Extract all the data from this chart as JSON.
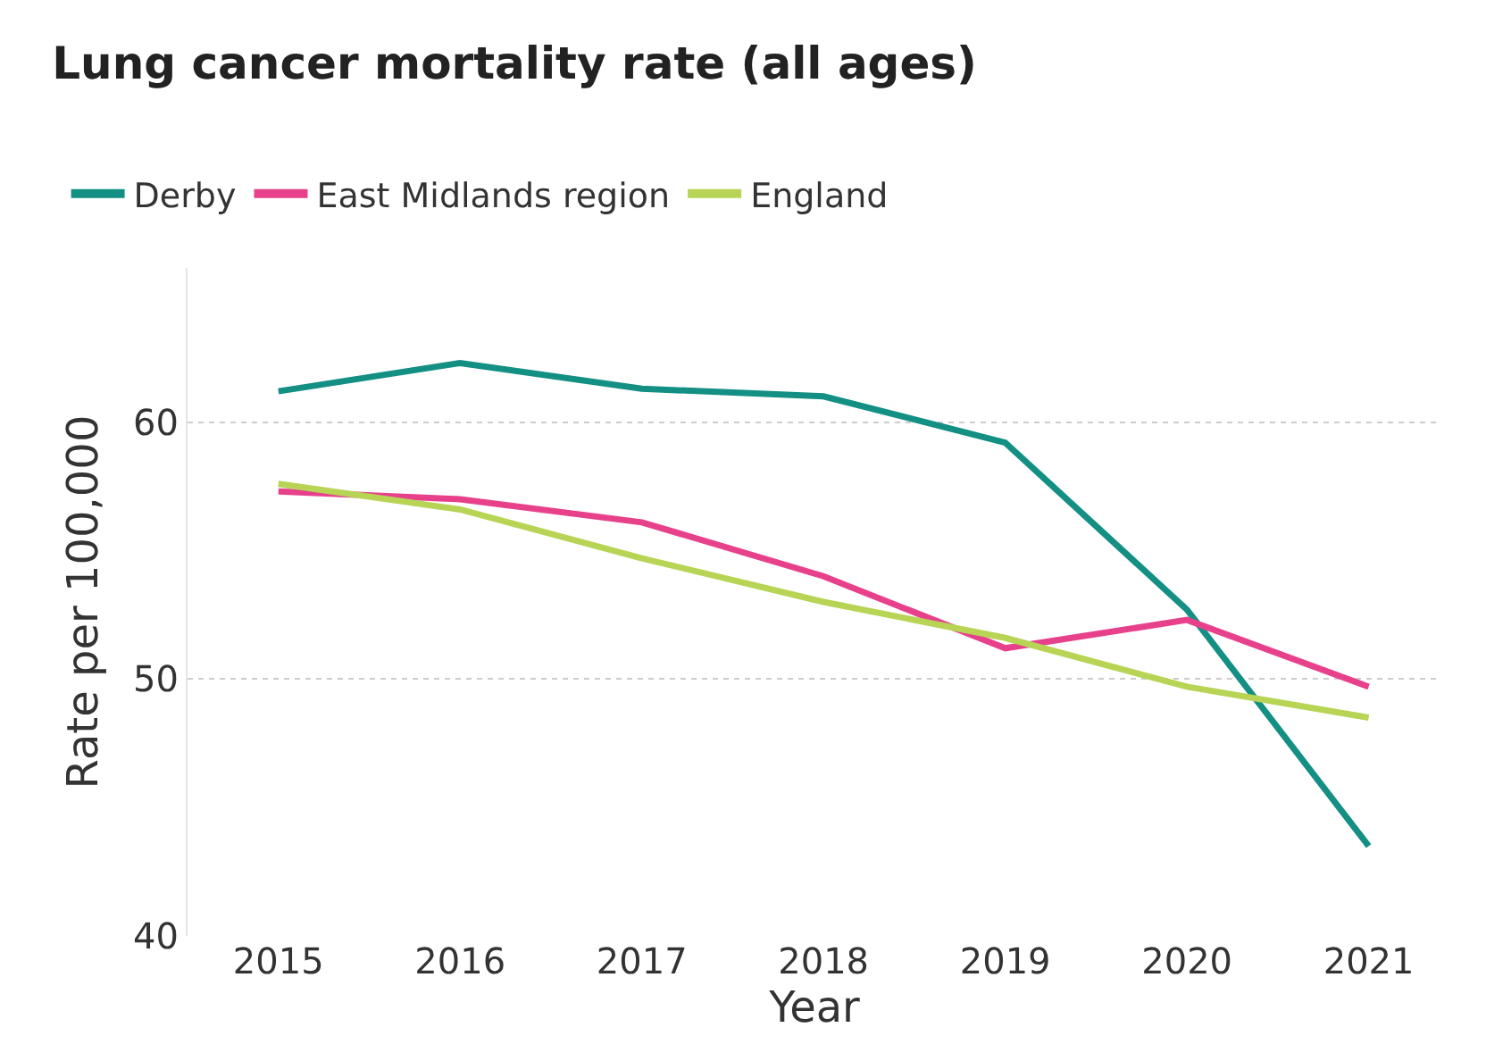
{
  "chart_data": {
    "type": "line",
    "title": "Lung cancer mortality rate (all ages)",
    "xlabel": "Year",
    "ylabel": "Rate per 100,000",
    "categories": [
      "2015",
      "2016",
      "2017",
      "2018",
      "2019",
      "2020",
      "2021"
    ],
    "series": [
      {
        "name": "Derby",
        "color": "#138f84",
        "values": [
          61.2,
          62.3,
          61.3,
          61.0,
          59.2,
          52.7,
          43.5
        ]
      },
      {
        "name": "East Midlands region",
        "color": "#e8418c",
        "values": [
          57.3,
          57.0,
          56.1,
          54.0,
          51.2,
          52.3,
          49.7
        ]
      },
      {
        "name": "England",
        "color": "#b7d455",
        "values": [
          57.6,
          56.6,
          54.7,
          53.0,
          51.6,
          49.7,
          48.5
        ]
      }
    ],
    "ylim": [
      40,
      66
    ],
    "yticks": [
      40,
      50,
      60
    ],
    "grid": "y",
    "legend": "top left",
    "marker": "none",
    "line_style": "solid"
  }
}
